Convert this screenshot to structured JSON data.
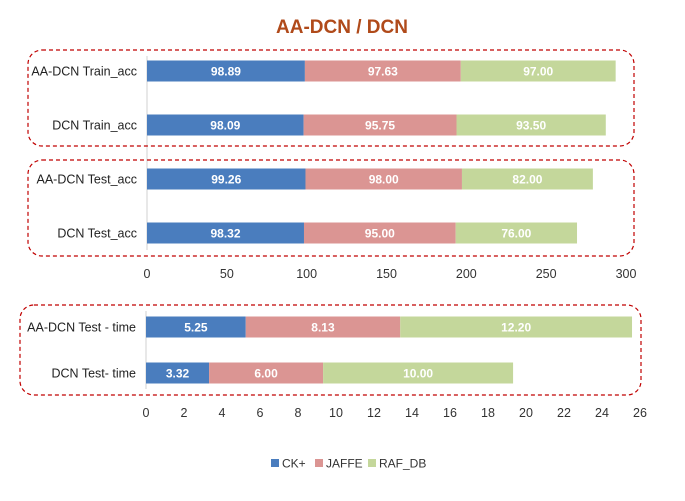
{
  "colors": {
    "title": "#b04a1a",
    "frame": "#c00000",
    "axis": "#d0d0d0"
  },
  "chart_data": {
    "type": "bar",
    "orientation": "horizontal",
    "stacked": true,
    "title": "AA-DCN / DCN",
    "legend": {
      "position": "bottom",
      "entries": [
        {
          "name": "CK+",
          "color": "#4a7dbe"
        },
        {
          "name": "JAFFE",
          "color": "#db9593"
        },
        {
          "name": "RAF_DB",
          "color": "#c4d79b"
        }
      ]
    },
    "panels": [
      {
        "xlim": [
          0,
          300
        ],
        "ticks": [
          "0",
          "50",
          "100",
          "150",
          "200",
          "250",
          "300"
        ],
        "groups": [
          {
            "categories": [
              "AA-DCN Train_acc",
              "DCN Train_acc"
            ],
            "series": [
              {
                "name": "CK+",
                "values": [
                  98.89,
                  98.09
                ],
                "labels": [
                  "98.89",
                  "98.09"
                ]
              },
              {
                "name": "JAFFE",
                "values": [
                  97.63,
                  95.75
                ],
                "labels": [
                  "97.63",
                  "95.75"
                ]
              },
              {
                "name": "RAF_DB",
                "values": [
                  97.0,
                  93.5
                ],
                "labels": [
                  "97.00",
                  "93.50"
                ]
              }
            ]
          },
          {
            "categories": [
              "AA-DCN Test_acc",
              "DCN Test_acc"
            ],
            "series": [
              {
                "name": "CK+",
                "values": [
                  99.26,
                  98.32
                ],
                "labels": [
                  "99.26",
                  "98.32"
                ]
              },
              {
                "name": "JAFFE",
                "values": [
                  98.0,
                  95.0
                ],
                "labels": [
                  "98.00",
                  "95.00"
                ]
              },
              {
                "name": "RAF_DB",
                "values": [
                  82.0,
                  76.0
                ],
                "labels": [
                  "82.00",
                  "76.00"
                ]
              }
            ]
          }
        ]
      },
      {
        "xlim": [
          0,
          26
        ],
        "ticks": [
          "0",
          "2",
          "4",
          "6",
          "8",
          "10",
          "12",
          "14",
          "16",
          "18",
          "20",
          "22",
          "24",
          "26"
        ],
        "groups": [
          {
            "categories": [
              "AA-DCN Test - time",
              "DCN Test- time"
            ],
            "series": [
              {
                "name": "CK+",
                "values": [
                  5.25,
                  3.32
                ],
                "labels": [
                  "5.25",
                  "3.32"
                ]
              },
              {
                "name": "JAFFE",
                "values": [
                  8.13,
                  6.0
                ],
                "labels": [
                  "8.13",
                  "6.00"
                ]
              },
              {
                "name": "RAF_DB",
                "values": [
                  12.2,
                  10.0
                ],
                "labels": [
                  "12.20",
                  "10.00"
                ]
              }
            ]
          }
        ]
      }
    ]
  }
}
